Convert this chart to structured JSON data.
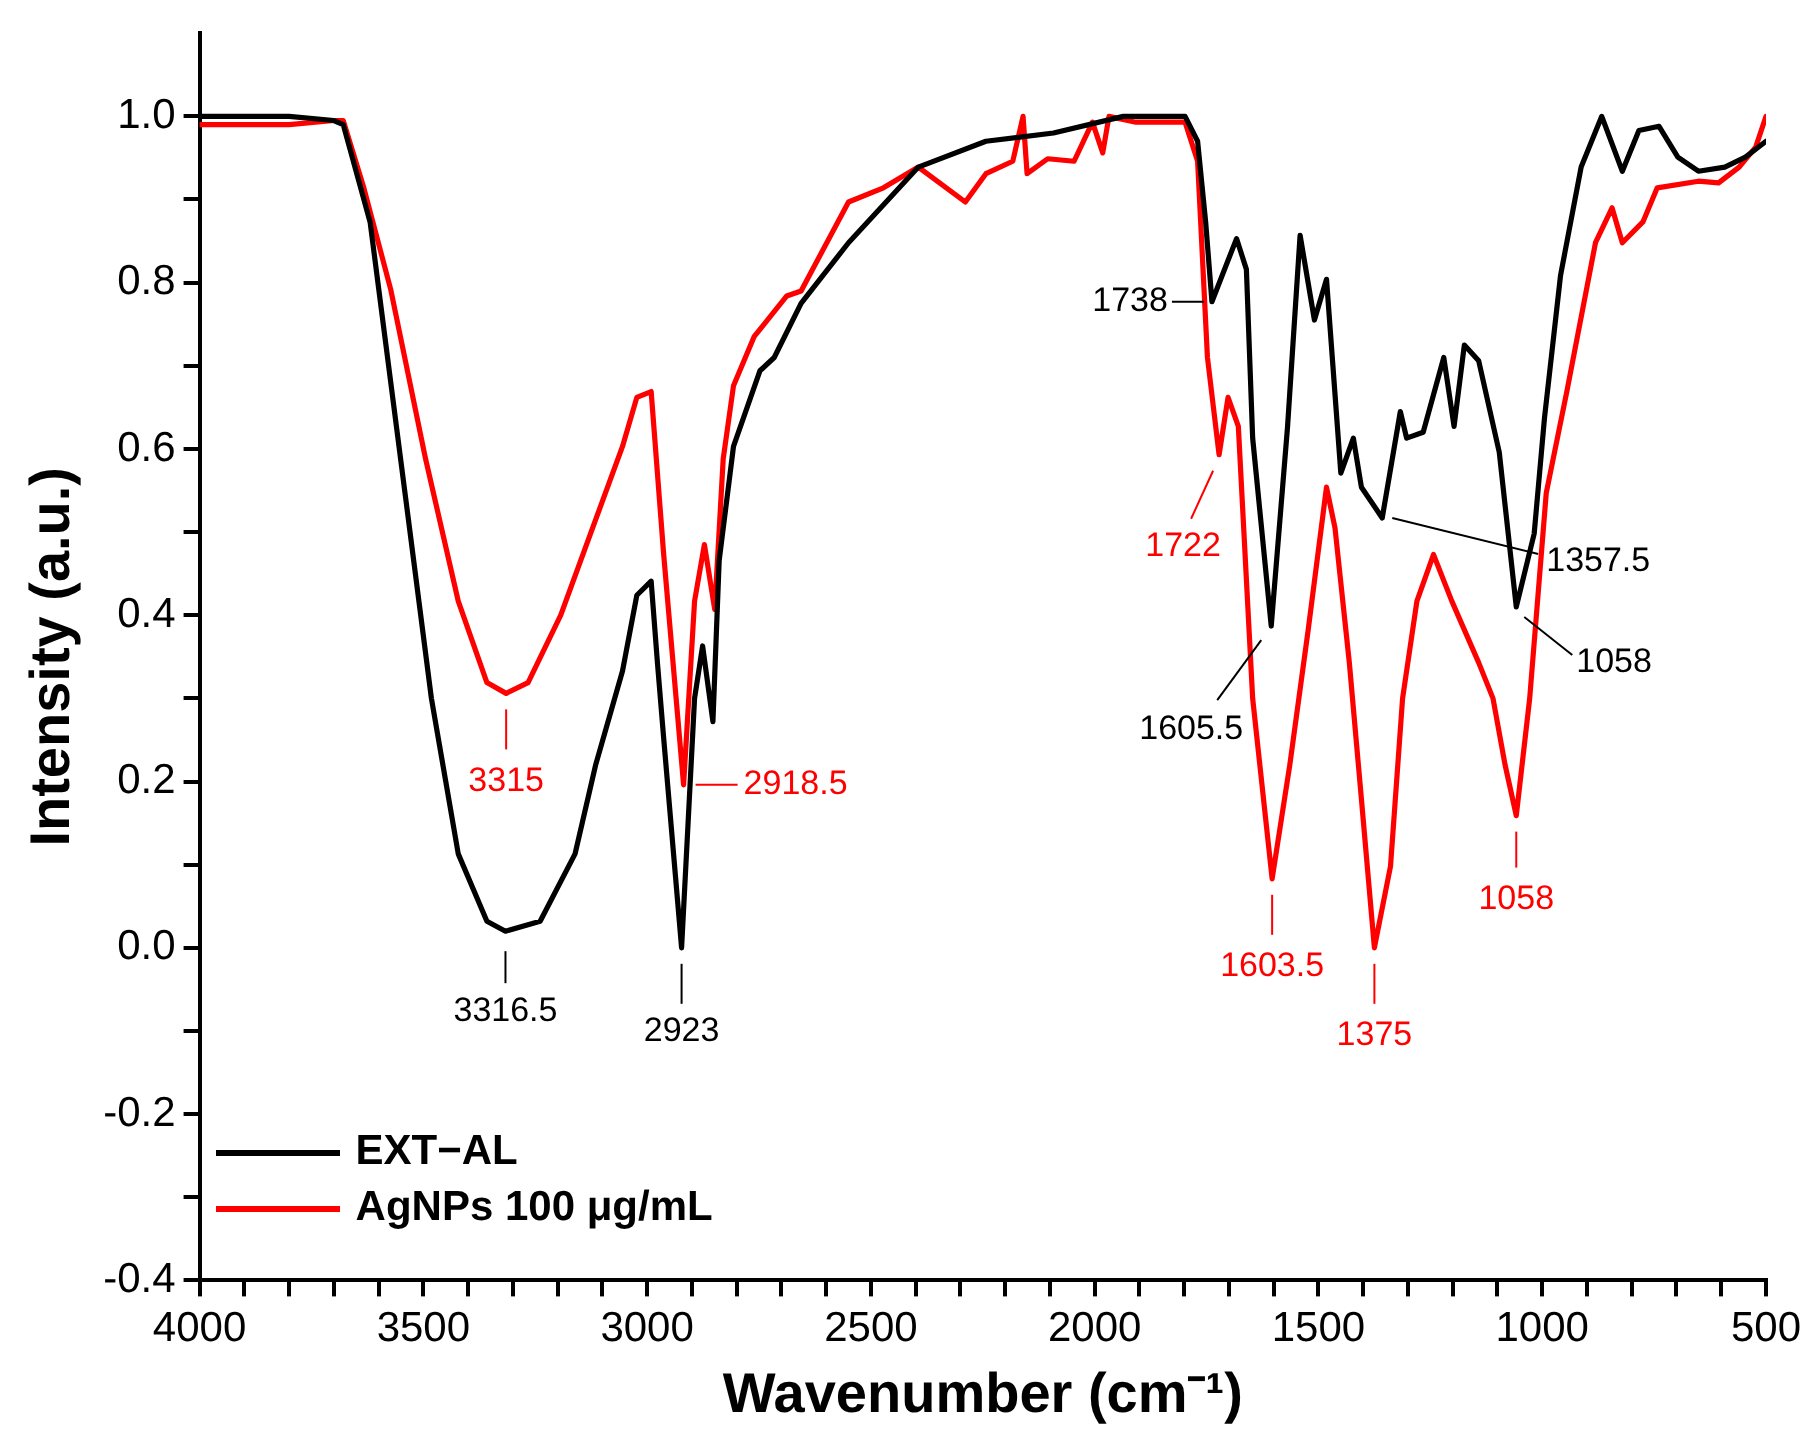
{
  "chart_data": {
    "type": "line",
    "xlabel": "Wavenumber (cm⁻¹)",
    "ylabel": "Intensity (a.u.)",
    "xlim": [
      4000,
      500
    ],
    "ylim": [
      -0.4,
      1.1
    ],
    "xticks": [
      4000,
      {
        "value": 3900,
        "label": null
      },
      {
        "value": 3800,
        "label": null
      },
      {
        "value": 3700,
        "label": null
      },
      {
        "value": 3600,
        "label": null
      },
      3500,
      {
        "value": 3400,
        "label": null
      },
      {
        "value": 3300,
        "label": null
      },
      {
        "value": 3200,
        "label": null
      },
      {
        "value": 3100,
        "label": null
      },
      3000,
      {
        "value": 2900,
        "label": null
      },
      {
        "value": 2800,
        "label": null
      },
      {
        "value": 2700,
        "label": null
      },
      {
        "value": 2600,
        "label": null
      },
      2500,
      {
        "value": 2400,
        "label": null
      },
      {
        "value": 2300,
        "label": null
      },
      {
        "value": 2200,
        "label": null
      },
      {
        "value": 2100,
        "label": null
      },
      2000,
      {
        "value": 1900,
        "label": null
      },
      {
        "value": 1800,
        "label": null
      },
      {
        "value": 1700,
        "label": null
      },
      {
        "value": 1600,
        "label": null
      },
      1500,
      {
        "value": 1400,
        "label": null
      },
      {
        "value": 1300,
        "label": null
      },
      {
        "value": 1200,
        "label": null
      },
      {
        "value": 1100,
        "label": null
      },
      1000,
      {
        "value": 900,
        "label": null
      },
      {
        "value": 800,
        "label": null
      },
      {
        "value": 700,
        "label": null
      },
      {
        "value": 600,
        "label": null
      },
      500
    ],
    "yticks": [
      {
        "value": -0.4,
        "label": "-0.4"
      },
      {
        "value": -0.3,
        "label": null
      },
      {
        "value": -0.2,
        "label": "-0.2"
      },
      {
        "value": -0.1,
        "label": null
      },
      {
        "value": 0,
        "label": "0.0"
      },
      {
        "value": 0.1,
        "label": null
      },
      {
        "value": 0.2,
        "label": "0.2"
      },
      {
        "value": 0.3,
        "label": null
      },
      {
        "value": 0.4,
        "label": "0.4"
      },
      {
        "value": 0.5,
        "label": null
      },
      {
        "value": 0.6,
        "label": "0.6"
      },
      {
        "value": 0.7,
        "label": null
      },
      {
        "value": 0.8,
        "label": "0.8"
      },
      {
        "value": 0.9,
        "label": null
      },
      {
        "value": 1.0,
        "label": "1.0"
      }
    ],
    "grid": false,
    "legend": "bottom left",
    "marker": "none",
    "line_style": "solid",
    "series": [
      {
        "name": "EXT−AL",
        "color": "#000000",
        "x": [
          4000,
          3800,
          3700,
          3679,
          3619,
          3541,
          3482,
          3422,
          3358,
          3316.5,
          3239,
          3161,
          3115,
          3055,
          3023,
          2991,
          2977,
          2963,
          2923,
          2894,
          2876,
          2853,
          2839,
          2807,
          2748,
          2716,
          2656,
          2550,
          2394,
          2243,
          2092,
          1936,
          1798,
          1770,
          1752,
          1738,
          1683,
          1661,
          1647,
          1605.5,
          1569,
          1541,
          1509,
          1482,
          1450,
          1422,
          1404,
          1357.5,
          1317,
          1303,
          1266,
          1220,
          1197,
          1174,
          1142,
          1096,
          1058,
          1018,
          995,
          959,
          913,
          867,
          821,
          784,
          739,
          697,
          651,
          592,
          546,
          500
        ],
        "values": [
          1.0,
          1.0,
          0.995,
          0.99,
          0.873,
          0.547,
          0.3,
          0.113,
          0.032,
          0.02,
          0.032,
          0.113,
          0.22,
          0.333,
          0.424,
          0.441,
          0.343,
          0.252,
          0.0,
          0.3,
          0.363,
          0.272,
          0.466,
          0.603,
          0.694,
          0.71,
          0.775,
          0.848,
          0.939,
          0.97,
          0.98,
          1.0,
          1.0,
          0.97,
          0.873,
          0.777,
          0.853,
          0.816,
          0.613,
          0.387,
          0.627,
          0.857,
          0.755,
          0.804,
          0.571,
          0.613,
          0.554,
          0.517,
          0.645,
          0.613,
          0.62,
          0.71,
          0.627,
          0.725,
          0.706,
          0.596,
          0.41,
          0.498,
          0.637,
          0.809,
          0.939,
          1.0,
          0.934,
          0.983,
          0.988,
          0.951,
          0.934,
          0.939,
          0.951,
          0.97
        ]
      },
      {
        "name": "AgNPs 100 μg/mL",
        "color": "#ff0000",
        "x": [
          4000,
          3800,
          3700,
          3679,
          3633,
          3573,
          3495,
          3422,
          3358,
          3315,
          3266,
          3193,
          3115,
          3055,
          3023,
          2991,
          2963,
          2918.5,
          2894,
          2872,
          2849,
          2830,
          2807,
          2761,
          2688,
          2656,
          2550,
          2472,
          2394,
          2289,
          2243,
          2183,
          2160,
          2151,
          2105,
          2046,
          2005,
          1982,
          1968,
          1908,
          1798,
          1770,
          1748,
          1722,
          1702,
          1679,
          1647,
          1603.5,
          1564,
          1523,
          1482,
          1463,
          1431,
          1404,
          1375,
          1339,
          1312,
          1280,
          1243,
          1202,
          1142,
          1110,
          1083,
          1058,
          1028,
          991,
          945,
          881,
          844,
          821,
          775,
          743,
          651,
          606,
          560,
          523,
          500
        ],
        "values": [
          0.99,
          0.99,
          0.995,
          0.995,
          0.914,
          0.792,
          0.588,
          0.417,
          0.319,
          0.306,
          0.319,
          0.4,
          0.515,
          0.603,
          0.662,
          0.669,
          0.473,
          0.196,
          0.417,
          0.485,
          0.407,
          0.588,
          0.676,
          0.735,
          0.784,
          0.79,
          0.897,
          0.914,
          0.939,
          0.897,
          0.931,
          0.946,
          1.0,
          0.931,
          0.949,
          0.946,
          0.993,
          0.956,
          1.0,
          0.993,
          0.993,
          0.946,
          0.71,
          0.593,
          0.662,
          0.627,
          0.3,
          0.083,
          0.22,
          0.382,
          0.554,
          0.505,
          0.343,
          0.179,
          0.0,
          0.098,
          0.3,
          0.417,
          0.473,
          0.417,
          0.343,
          0.3,
          0.22,
          0.159,
          0.3,
          0.547,
          0.669,
          0.848,
          0.89,
          0.848,
          0.873,
          0.914,
          0.922,
          0.92,
          0.939,
          0.963,
          1.0
        ]
      }
    ],
    "annotations": [
      {
        "text": "3316.5",
        "x": 3316.5,
        "y": 0.02
      },
      {
        "text": "2923",
        "x": 2923,
        "y": 0.0
      },
      {
        "text": "1738",
        "x": 1738,
        "y": 0.777
      },
      {
        "text": "1605.5",
        "x": 1605.5,
        "y": 0.387
      },
      {
        "text": "1357.5",
        "x": 1357.5,
        "y": 0.517
      },
      {
        "text": "1058",
        "x": 1058,
        "y": 0.41
      },
      {
        "text": "3315",
        "x": 3315,
        "y": 0.306
      },
      {
        "text": "2918.5",
        "x": 2918.5,
        "y": 0.196
      },
      {
        "text": "1722",
        "x": 1722,
        "y": 0.593
      },
      {
        "text": "1603.5",
        "x": 1603.5,
        "y": 0.083
      },
      {
        "text": "1375",
        "x": 1375,
        "y": 0.0
      },
      {
        "text": "1058",
        "x": 1058,
        "y": 0.159
      }
    ]
  }
}
